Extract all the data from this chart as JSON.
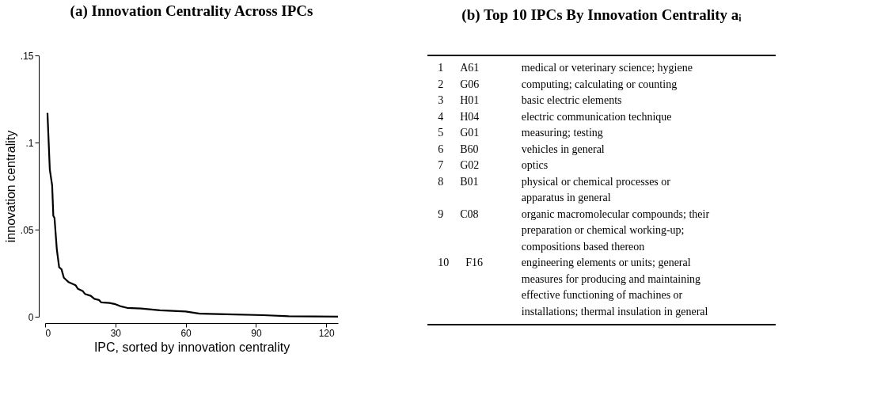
{
  "chart_data": [
    {
      "type": "line",
      "title": "(a) Innovation Centrality Across IPCs",
      "xlabel": "IPC, sorted by innovation centrality",
      "ylabel": "innovation centrality",
      "x": [
        1,
        2,
        3,
        3.5,
        4,
        5,
        6,
        7,
        8,
        10,
        13,
        14,
        16,
        17,
        19.5,
        21,
        23,
        24,
        27.5,
        30,
        32,
        35,
        41,
        49,
        60,
        66,
        77,
        93,
        104,
        125
      ],
      "series": [
        {
          "color": "#000000",
          "values": [
            0.117,
            0.0845,
            0.0754,
            0.058,
            0.0567,
            0.0386,
            0.0284,
            0.0272,
            0.0224,
            0.0199,
            0.0181,
            0.016,
            0.0148,
            0.0131,
            0.012,
            0.0103,
            0.0096,
            0.0082,
            0.0079,
            0.0072,
            0.0061,
            0.0051,
            0.0047,
            0.0037,
            0.003,
            0.0018,
            0.0014,
            0.0009,
            0.0003,
            0.0001
          ]
        }
      ],
      "xlim": [
        0,
        125
      ],
      "xticks": [
        0,
        30,
        60,
        90,
        120
      ],
      "ylim": [
        0,
        0.15
      ],
      "yticks": [
        0,
        {
          "value": 0.05,
          "label": ".05"
        },
        {
          "value": 0.1,
          "label": ".1"
        },
        {
          "value": 0.15,
          "label": ".15"
        }
      ],
      "grid": false,
      "legend": false,
      "marker": "none",
      "line_style": "solid"
    },
    {
      "type": "other",
      "title": "(b) Top 10 IPCs By Innovation Centrality aᵢ",
      "annotations": [
        "1\tA61\tmedical or veterinary science; hygiene",
        "2\tG06\tcomputing; calculating or counting",
        "3\tH01\tbasic electric elements",
        "4\tH04\telectric communication technique",
        "5\tG01\tmeasuring; testing",
        "6\tB60\tvehicles in general",
        "7\tG02\toptics",
        "8\tB01\tphysical or chemical processes or",
        "\t\tapparatus in general",
        "9\tC08\torganic macromolecular compounds; their",
        "\t\tpreparation or chemical working-up;",
        "\t\tcompositions based thereon",
        "10\tF16\tengineering elements or units; general",
        "\t\tmeasures for producing and maintaining",
        "\t\teffective functioning of machines or",
        "\t\tinstallations; thermal insulation in general"
      ]
    }
  ]
}
